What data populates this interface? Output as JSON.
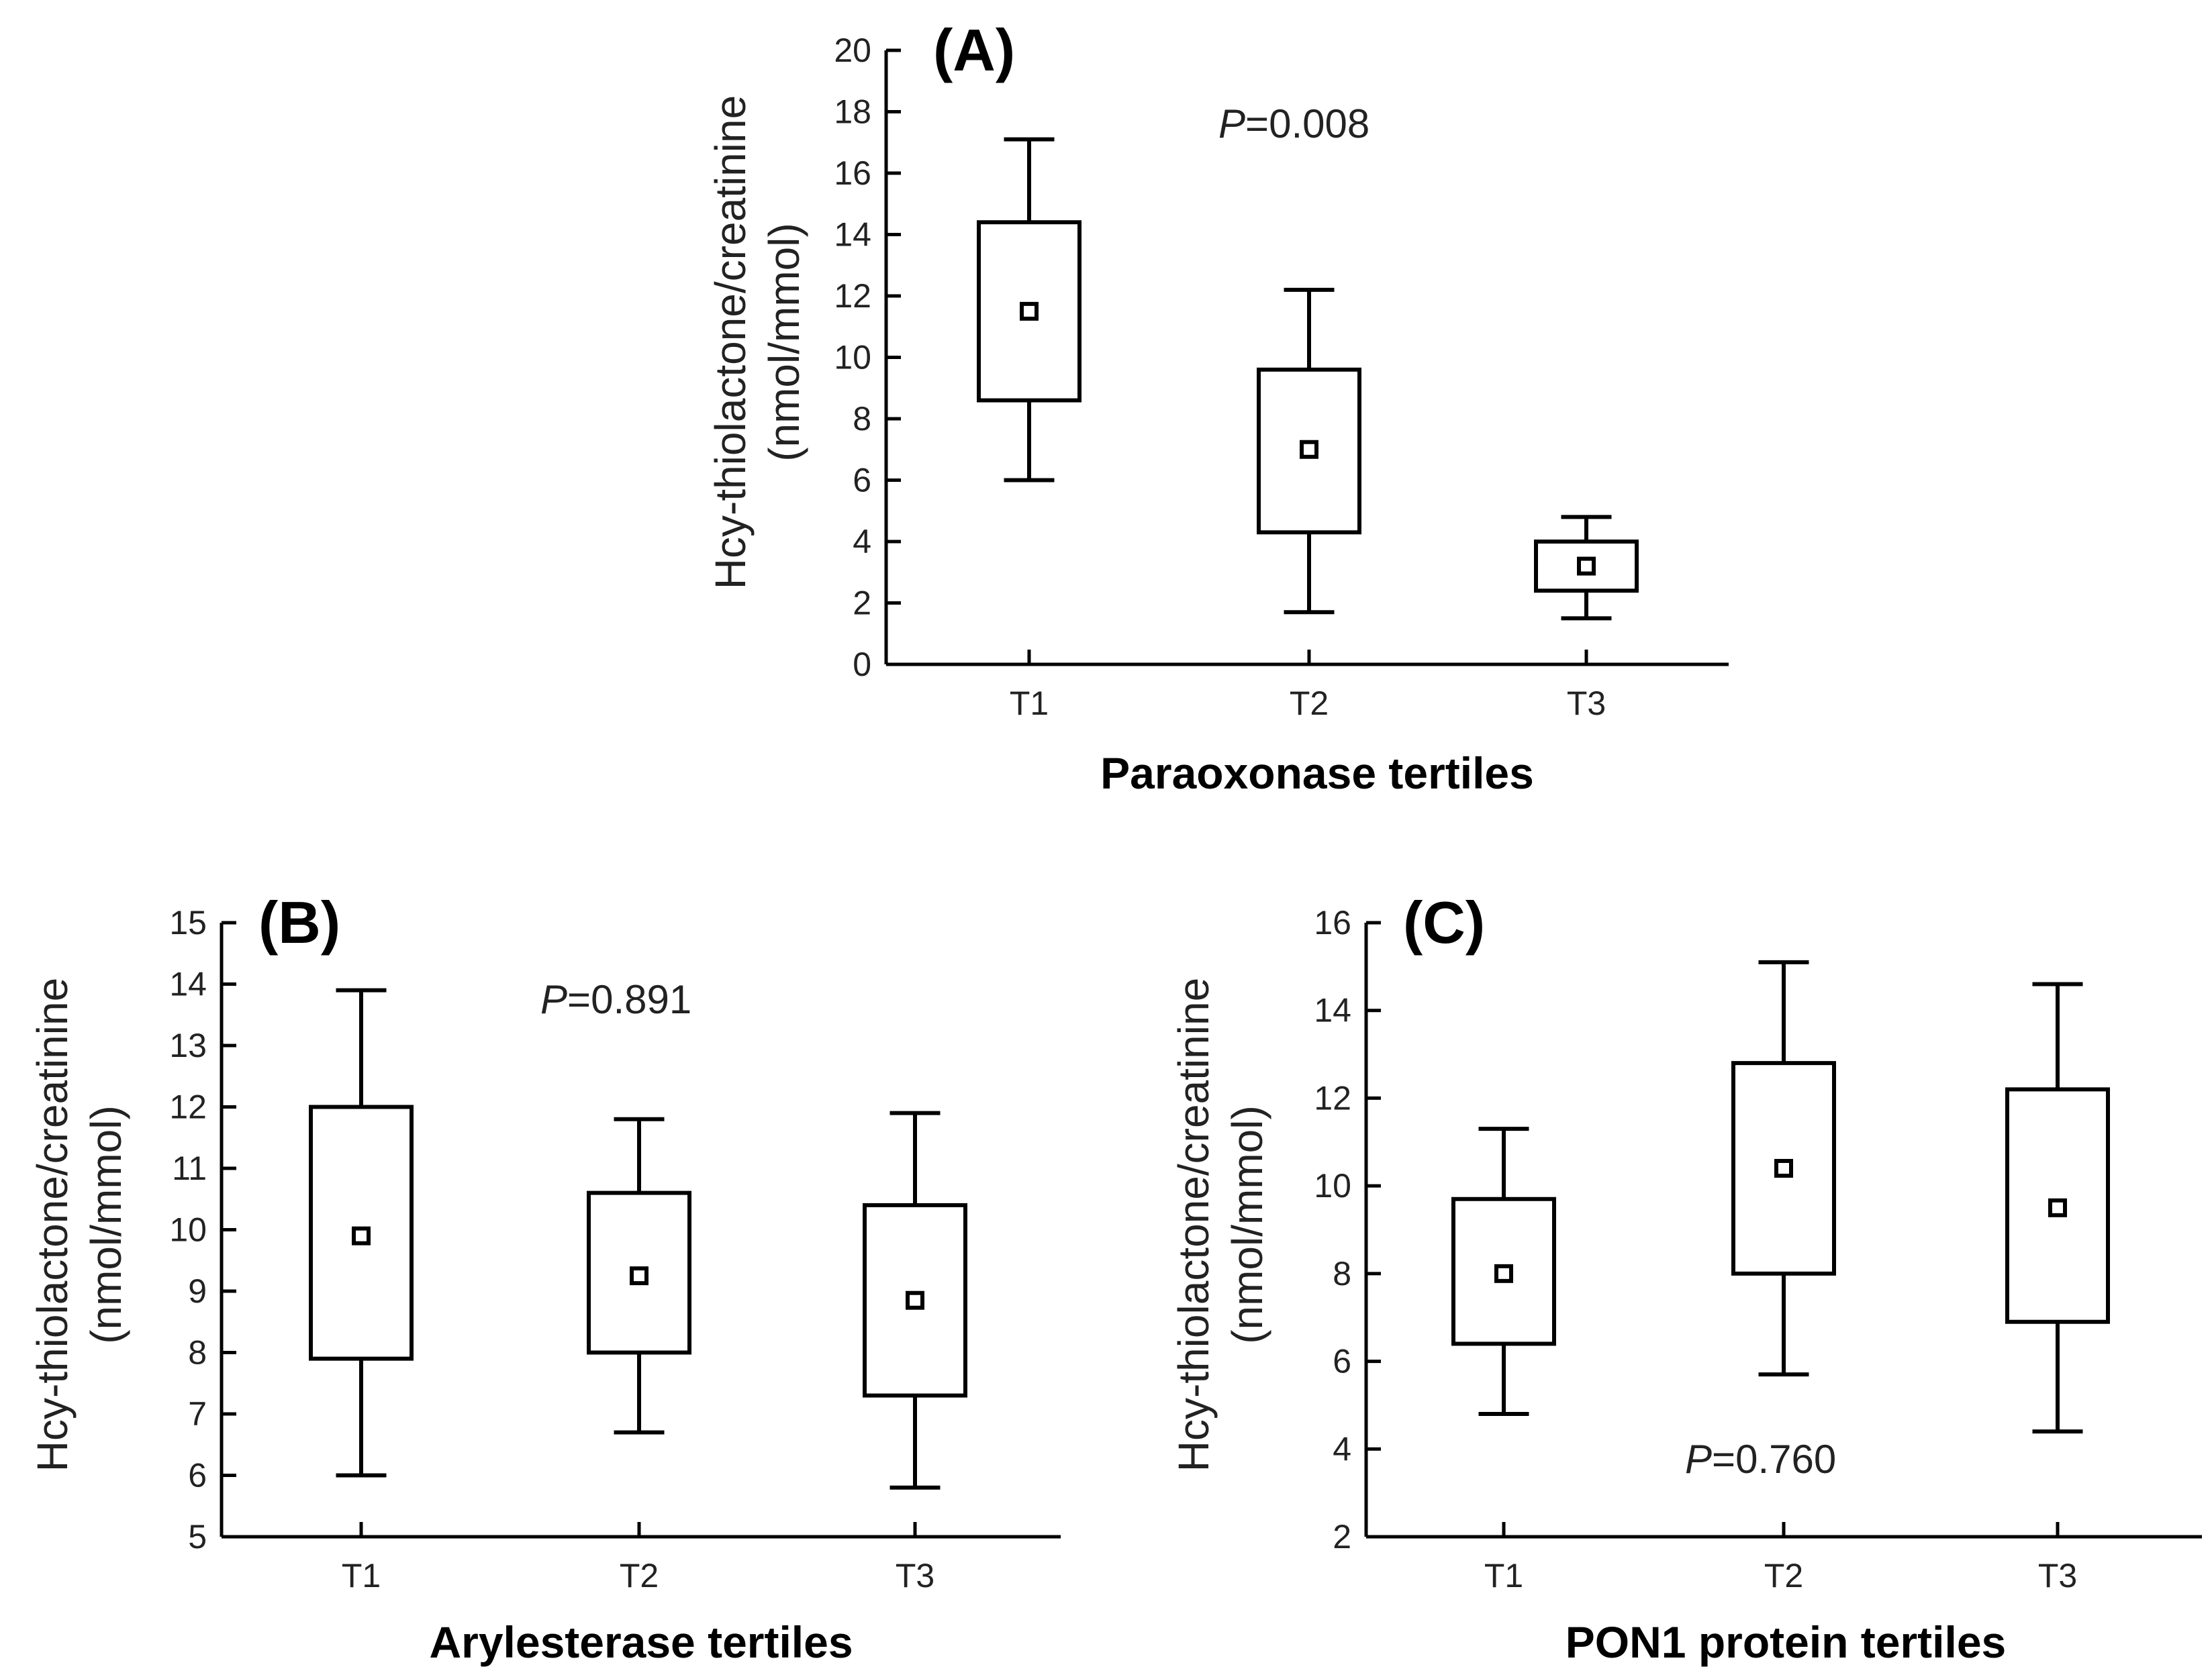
{
  "chart_data": [
    {
      "type": "box",
      "panel_label": "(A)",
      "title": "",
      "xlabel": "Paraoxonase tertiles",
      "ylabel_line1": "Hcy-thiolactone/creatinine",
      "ylabel_line2": "(nmol/mmol)",
      "ylim": [
        0,
        20
      ],
      "yticks": [
        0,
        2,
        4,
        6,
        8,
        10,
        12,
        14,
        16,
        18,
        20
      ],
      "categories": [
        "T1",
        "T2",
        "T3"
      ],
      "boxes": [
        {
          "category": "T1",
          "whisker_low": 6.0,
          "q1": 8.6,
          "mean": 11.5,
          "q3": 14.4,
          "whisker_high": 17.1
        },
        {
          "category": "T2",
          "whisker_low": 1.7,
          "q1": 4.3,
          "mean": 7.0,
          "q3": 9.6,
          "whisker_high": 12.2
        },
        {
          "category": "T3",
          "whisker_low": 1.5,
          "q1": 2.4,
          "mean": 3.2,
          "q3": 4.0,
          "whisker_high": 4.8
        }
      ],
      "p_prefix": "P",
      "p_text": "=0.008"
    },
    {
      "type": "box",
      "panel_label": "(B)",
      "title": "",
      "xlabel": "Arylesterase tertiles",
      "ylabel_line1": "Hcy-thiolactone/creatinine",
      "ylabel_line2": "(nmol/mmol)",
      "ylim": [
        5,
        15
      ],
      "yticks": [
        5,
        6,
        7,
        8,
        9,
        10,
        11,
        12,
        13,
        14,
        15
      ],
      "categories": [
        "T1",
        "T2",
        "T3"
      ],
      "boxes": [
        {
          "category": "T1",
          "whisker_low": 6.0,
          "q1": 7.9,
          "mean": 9.9,
          "q3": 12.0,
          "whisker_high": 13.9
        },
        {
          "category": "T2",
          "whisker_low": 6.7,
          "q1": 8.0,
          "mean": 9.25,
          "q3": 10.6,
          "whisker_high": 11.8
        },
        {
          "category": "T3",
          "whisker_low": 5.8,
          "q1": 7.3,
          "mean": 8.85,
          "q3": 10.4,
          "whisker_high": 11.9
        }
      ],
      "p_prefix": "P",
      "p_text": "=0.891"
    },
    {
      "type": "box",
      "panel_label": "(C)",
      "title": "",
      "xlabel": "PON1 protein tertiles",
      "ylabel_line1": "Hcy-thiolactone/creatinine",
      "ylabel_line2": "(nmol/mmol)",
      "ylim": [
        2,
        16
      ],
      "yticks": [
        2,
        4,
        6,
        8,
        10,
        12,
        14,
        16
      ],
      "categories": [
        "T1",
        "T2",
        "T3"
      ],
      "boxes": [
        {
          "category": "T1",
          "whisker_low": 4.8,
          "q1": 6.4,
          "mean": 8.0,
          "q3": 9.7,
          "whisker_high": 11.3
        },
        {
          "category": "T2",
          "whisker_low": 5.7,
          "q1": 8.0,
          "mean": 10.4,
          "q3": 12.8,
          "whisker_high": 15.1
        },
        {
          "category": "T3",
          "whisker_low": 4.4,
          "q1": 6.9,
          "mean": 9.5,
          "q3": 12.2,
          "whisker_high": 14.6
        }
      ],
      "p_prefix": "P",
      "p_text": "=0.760"
    }
  ]
}
